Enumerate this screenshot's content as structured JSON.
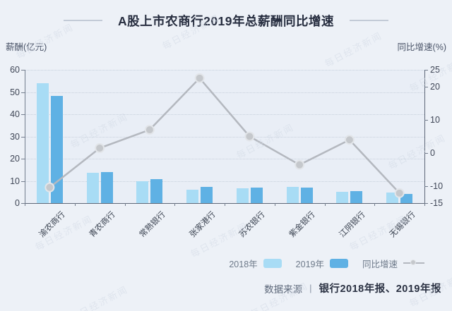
{
  "title": "A股上市农商行2019年总薪酬同比增速",
  "watermark_text": "每日经济新闻",
  "colors": {
    "bar_2018": "#a8dcf5",
    "bar_2019": "#5fb1e4",
    "line": "#b4b8bf",
    "point_fill": "#c5c8cc",
    "point_stroke": "#e2e5e9",
    "background": "#edf1f7",
    "title_text": "#262d3f"
  },
  "legend": {
    "items": [
      {
        "label": "2018年",
        "type": "bar",
        "color": "#a8dcf5"
      },
      {
        "label": "2019年",
        "type": "bar",
        "color": "#5fb1e4"
      },
      {
        "label": "同比增速",
        "type": "line",
        "color": "#b4b8bf"
      }
    ]
  },
  "footer": {
    "source_label": "数据来源",
    "separator": "|",
    "source_text": "银行2018年报、2019年报"
  },
  "chart_data": {
    "type": "bar",
    "subtype": "grouped-bars-with-line",
    "title": "A股上市农商行2019年总薪酬同比增速",
    "categories": [
      "渝农商行",
      "青农商行",
      "常熟银行",
      "张家港行",
      "苏农银行",
      "紫金银行",
      "江阴银行",
      "无锡银行"
    ],
    "series": [
      {
        "name": "2018年",
        "type": "bar",
        "axis": "left",
        "color": "#a8dcf5",
        "values": [
          54.0,
          13.7,
          10.0,
          6.0,
          6.6,
          7.3,
          5.2,
          4.7
        ]
      },
      {
        "name": "2019年",
        "type": "bar",
        "axis": "left",
        "color": "#5fb1e4",
        "values": [
          48.3,
          13.9,
          10.7,
          7.3,
          6.9,
          7.0,
          5.4,
          4.1
        ]
      },
      {
        "name": "同比增速",
        "type": "line",
        "axis": "right",
        "color": "#b4b8bf",
        "values": [
          -10.3,
          1.5,
          7.0,
          22.5,
          5.0,
          -3.5,
          4.0,
          -12.0
        ]
      }
    ],
    "left_axis": {
      "label": "薪酬(亿元)",
      "min": 0,
      "max": 60,
      "ticks": [
        0,
        10,
        20,
        30,
        40,
        50,
        60
      ]
    },
    "right_axis": {
      "label": "同比增速(%)",
      "min": -15,
      "max": 25,
      "ticks": [
        -15,
        -10,
        0,
        10,
        20,
        25
      ]
    },
    "grid": "dotted-horizontal",
    "legend_position": "bottom-right",
    "xlabel_rotation": 45
  }
}
